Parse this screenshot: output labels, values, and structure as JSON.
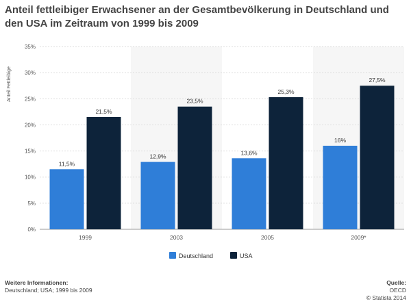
{
  "colors": {
    "deutschland": "#2f7ed8",
    "usa": "#0d233a",
    "band": "#f6f6f6",
    "grid": "#dddddd"
  },
  "footer": {
    "info_heading": "Weitere Informationen:",
    "info_text": "Deutschland; USA; 1999 bis 2009",
    "source_heading": "Quelle:",
    "source_text": "OECD",
    "copyright": "© Statista 2014"
  },
  "chart_data": {
    "type": "bar",
    "title": "Anteil fettleibiger Erwachsener an der Gesamtbevölkerung in Deutschland und den USA im Zeitraum von 1999 bis 2009",
    "xlabel": "",
    "ylabel": "Anteil Fettleibige",
    "categories": [
      "1999",
      "2003",
      "2005",
      "2009*"
    ],
    "ylim": [
      0,
      35
    ],
    "yticks": [
      0,
      5,
      10,
      15,
      20,
      25,
      30,
      35
    ],
    "ytick_labels": [
      "0%",
      "5%",
      "10%",
      "15%",
      "20%",
      "25%",
      "30%",
      "35%"
    ],
    "series": [
      {
        "name": "Deutschland",
        "values": [
          11.5,
          12.9,
          13.6,
          16
        ],
        "labels": [
          "11,5%",
          "12,9%",
          "13,6%",
          "16%"
        ]
      },
      {
        "name": "USA",
        "values": [
          21.5,
          23.5,
          25.3,
          27.5
        ],
        "labels": [
          "21,5%",
          "23,5%",
          "25,3%",
          "27,5%"
        ]
      }
    ],
    "legend_position": "bottom-center",
    "grid": true
  }
}
